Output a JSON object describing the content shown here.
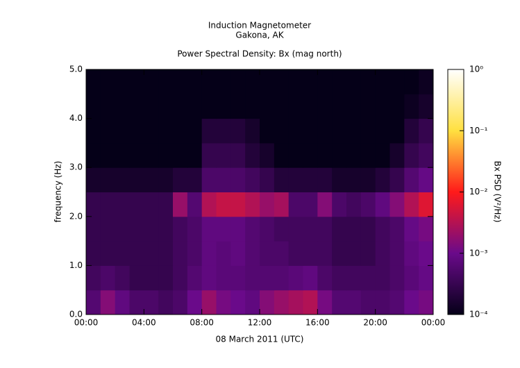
{
  "chart_data": {
    "type": "heatmap",
    "title": "Induction Magnetometer",
    "subtitle": "Gakona, AK",
    "plot_title": "Power Spectral Density: Bx (mag north)",
    "x_label": "08 March 2011 (UTC)",
    "y_label": "frequency (Hz)",
    "xlim": [
      0,
      24
    ],
    "xticks": [
      {
        "value": 0,
        "label": "00:00"
      },
      {
        "value": 4,
        "label": "04:00"
      },
      {
        "value": 8,
        "label": "08:00"
      },
      {
        "value": 12,
        "label": "12:00"
      },
      {
        "value": 16,
        "label": "16:00"
      },
      {
        "value": 20,
        "label": "20:00"
      },
      {
        "value": 24,
        "label": "00:00"
      }
    ],
    "ylim": [
      0,
      5
    ],
    "yticks": [
      {
        "value": 0,
        "label": "0.0"
      },
      {
        "value": 1,
        "label": "1.0"
      },
      {
        "value": 2,
        "label": "2.0"
      },
      {
        "value": 3,
        "label": "3.0"
      },
      {
        "value": 4,
        "label": "4.0"
      },
      {
        "value": 5,
        "label": "5.0"
      }
    ],
    "x_bins": [
      0,
      1,
      2,
      3,
      4,
      5,
      6,
      7,
      8,
      9,
      10,
      11,
      12,
      13,
      14,
      15,
      16,
      17,
      18,
      19,
      20,
      21,
      22,
      23,
      24
    ],
    "y_bins": [
      0,
      0.5,
      1,
      1.5,
      2,
      2.5,
      3,
      3.5,
      4,
      4.5,
      5
    ],
    "z": [
      [
        0.0006,
        0.0015,
        0.0008,
        0.0005,
        0.0005,
        0.0004,
        0.0005,
        0.001,
        0.002,
        0.0012,
        0.001,
        0.0008,
        0.0015,
        0.002,
        0.0025,
        0.003,
        0.0012,
        0.0006,
        0.0006,
        0.0005,
        0.0005,
        0.0006,
        0.001,
        0.0012
      ],
      [
        0.0004,
        0.0005,
        0.0004,
        0.0003,
        0.0003,
        0.0003,
        0.0004,
        0.0006,
        0.0008,
        0.0007,
        0.0007,
        0.0006,
        0.0006,
        0.0006,
        0.0007,
        0.0008,
        0.0005,
        0.0004,
        0.0004,
        0.0004,
        0.0004,
        0.0005,
        0.0007,
        0.0009
      ],
      [
        0.0003,
        0.0003,
        0.0003,
        0.0003,
        0.0003,
        0.0003,
        0.0004,
        0.0005,
        0.0008,
        0.0007,
        0.0008,
        0.0006,
        0.0005,
        0.0005,
        0.0004,
        0.0004,
        0.0004,
        0.0003,
        0.0003,
        0.0003,
        0.0004,
        0.0005,
        0.0008,
        0.001
      ],
      [
        0.0003,
        0.0003,
        0.0003,
        0.0003,
        0.0003,
        0.0003,
        0.0004,
        0.0005,
        0.0008,
        0.0008,
        0.0008,
        0.0006,
        0.0005,
        0.0004,
        0.0004,
        0.0004,
        0.0004,
        0.0003,
        0.0003,
        0.0003,
        0.0004,
        0.0005,
        0.0009,
        0.0012
      ],
      [
        0.0003,
        0.0003,
        0.0003,
        0.0003,
        0.0003,
        0.0003,
        0.002,
        0.0006,
        0.003,
        0.004,
        0.004,
        0.003,
        0.002,
        0.0025,
        0.0005,
        0.0005,
        0.0015,
        0.0005,
        0.0004,
        0.0005,
        0.0008,
        0.0015,
        0.003,
        0.006
      ],
      [
        0.00015,
        0.00015,
        0.00015,
        0.00015,
        0.00015,
        0.00015,
        0.0002,
        0.0002,
        0.0005,
        0.0005,
        0.0005,
        0.0004,
        0.0003,
        0.0002,
        0.0002,
        0.0002,
        0.0002,
        0.00015,
        0.00015,
        0.00015,
        0.0002,
        0.0003,
        0.0006,
        0.0009
      ],
      [
        0.0001,
        0.0001,
        0.0001,
        0.0001,
        0.0001,
        0.0001,
        0.0001,
        0.0001,
        0.0003,
        0.0003,
        0.0003,
        0.0002,
        0.00015,
        0.0001,
        0.0001,
        0.0001,
        0.0001,
        0.0001,
        0.0001,
        0.0001,
        0.0001,
        0.00015,
        0.0003,
        0.0004
      ],
      [
        0.0001,
        0.0001,
        0.0001,
        0.0001,
        0.0001,
        0.0001,
        0.0001,
        0.0001,
        0.0002,
        0.0002,
        0.0002,
        0.00015,
        0.0001,
        0.0001,
        0.0001,
        0.0001,
        0.0001,
        0.0001,
        0.0001,
        0.0001,
        0.0001,
        0.0001,
        0.0002,
        0.0003
      ],
      [
        0.0001,
        0.0001,
        0.0001,
        0.0001,
        0.0001,
        0.0001,
        0.0001,
        0.0001,
        0.0001,
        0.0001,
        0.0001,
        0.0001,
        0.0001,
        0.0001,
        0.0001,
        0.0001,
        0.0001,
        0.0001,
        0.0001,
        0.0001,
        0.0001,
        0.0001,
        0.00012,
        0.00015
      ],
      [
        0.0001,
        0.0001,
        0.0001,
        0.0001,
        0.0001,
        0.0001,
        0.0001,
        0.0001,
        0.0001,
        0.0001,
        0.0001,
        0.0001,
        0.0001,
        0.0001,
        0.0001,
        0.0001,
        0.0001,
        0.0001,
        0.0001,
        0.0001,
        0.0001,
        0.0001,
        0.0001,
        0.00012
      ]
    ],
    "colormap": [
      "#050018",
      "#6a0a8a",
      "#ff1a1a",
      "#ffe040",
      "#ffffff"
    ],
    "colorbar": {
      "label": "Bx PSD (V²/Hz)",
      "log": true,
      "range": [
        0.0001,
        1
      ],
      "ticks": [
        {
          "value": 0.0001,
          "label": "10⁻⁴"
        },
        {
          "value": 0.001,
          "label": "10⁻³"
        },
        {
          "value": 0.01,
          "label": "10⁻²"
        },
        {
          "value": 0.1,
          "label": "10⁻¹"
        },
        {
          "value": 1,
          "label": "10⁰"
        }
      ]
    }
  }
}
